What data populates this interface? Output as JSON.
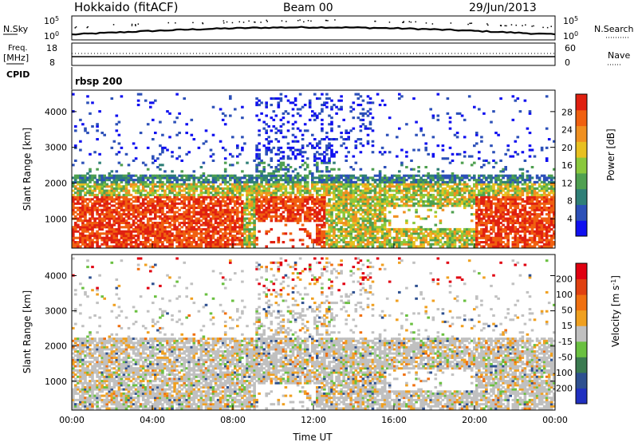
{
  "header": {
    "station": "Hokkaido (fitACF)",
    "beam": "Beam 00",
    "date": "29/Jun/2013"
  },
  "status": {
    "nsky_label": "N.Sky",
    "nsky_top": "10^5",
    "nsky_bottom": "10^0",
    "nsearch_label": "N.Search",
    "nsearch_top": "10^5",
    "nsearch_bottom": "10^0",
    "freq_label": "Freq.",
    "freq_unit": "[MHz]",
    "freq_top": "18",
    "freq_bottom": "8",
    "nave_label": "Nave",
    "nave_top": "60",
    "nave_bottom": "0",
    "cpid_label": "CPID",
    "cpid_value": "rbsp 200"
  },
  "chart_data": [
    {
      "type": "heatmap",
      "panel": "power",
      "xlabel": "",
      "ylabel": "Slant Range [km]",
      "x_ticks": [
        "00:00",
        "04:00",
        "08:00",
        "12:00",
        "16:00",
        "20:00",
        "00:00"
      ],
      "y_ticks": [
        "1000",
        "2000",
        "3000",
        "4000"
      ],
      "xlim": [
        0,
        24
      ],
      "ylim": [
        180,
        4600
      ],
      "colorbar_label": "Power [dB]",
      "colorbar_ticks": [
        "4",
        "8",
        "12",
        "16",
        "20",
        "24",
        "28"
      ],
      "colorbar_colors": [
        "#1010f0",
        "#2c50b8",
        "#2f7f77",
        "#4fa050",
        "#8ac83c",
        "#e8c020",
        "#f09020",
        "#f06010",
        "#e02010"
      ]
    },
    {
      "type": "heatmap",
      "panel": "velocity",
      "xlabel": "Time UT",
      "ylabel": "Slant Range [km]",
      "x_ticks": [
        "00:00",
        "04:00",
        "08:00",
        "12:00",
        "16:00",
        "20:00",
        "00:00"
      ],
      "y_ticks": [
        "1000",
        "2000",
        "3000",
        "4000"
      ],
      "xlim": [
        0,
        24
      ],
      "ylim": [
        180,
        4600
      ],
      "colorbar_label": "Velocity [m s^-1]",
      "colorbar_ticks": [
        "200",
        "100",
        "50",
        "15",
        "-15",
        "-50",
        "-100",
        "-200"
      ],
      "colorbar_colors": [
        "#2030c0",
        "#2e5090",
        "#3a7a50",
        "#6ac040",
        "#c0c0c0",
        "#f0a020",
        "#f07010",
        "#e04010",
        "#e00010"
      ]
    }
  ]
}
